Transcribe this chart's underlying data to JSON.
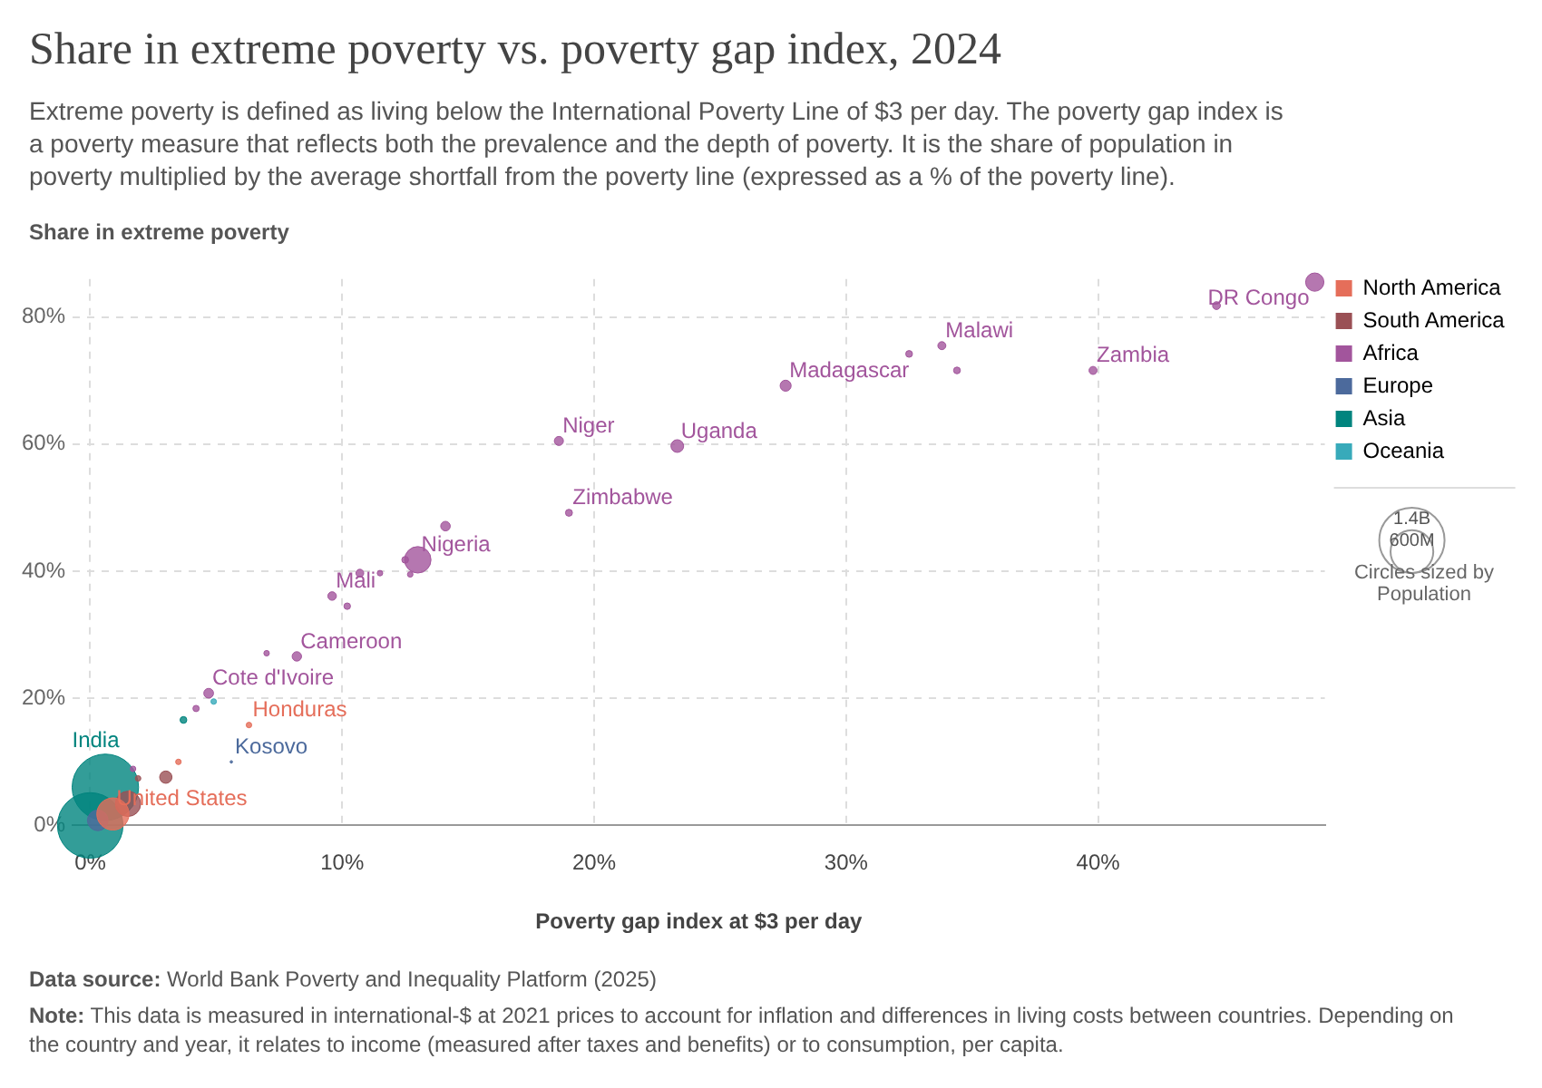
{
  "chart_data": {
    "type": "bubble",
    "title": "Share in extreme poverty vs. poverty gap index, 2024",
    "subtitle": "Extreme poverty is defined as living below the International Poverty Line of $3 per day. The poverty gap index is a poverty measure that reflects both the prevalence and the depth of poverty. It is the share of population in poverty multiplied by the average shortfall from the poverty line (expressed as a % of the poverty line).",
    "xlabel": "Poverty gap index at $3 per day",
    "ylabel": "Share in extreme poverty",
    "xlim": [
      -0.7,
      49
    ],
    "ylim": [
      0,
      86
    ],
    "xticks": [
      {
        "value": 0,
        "label": "0%"
      },
      {
        "value": 10,
        "label": "10%"
      },
      {
        "value": 20,
        "label": "20%"
      },
      {
        "value": 30,
        "label": "30%"
      },
      {
        "value": 40,
        "label": "40%"
      }
    ],
    "yticks": [
      {
        "value": 0,
        "label": "0%"
      },
      {
        "value": 20,
        "label": "20%"
      },
      {
        "value": 40,
        "label": "40%"
      },
      {
        "value": 60,
        "label": "60%"
      },
      {
        "value": 80,
        "label": "80%"
      }
    ],
    "grid": true,
    "legend": "top right",
    "line_style": "dashed",
    "size_legend": [
      {
        "value": 1400000000,
        "label": "1.4B"
      },
      {
        "value": 600000000,
        "label": "600M"
      }
    ],
    "series": [
      {
        "name": "North America",
        "color": "#e56e5a",
        "x": [
          0.9,
          6.3,
          3.5
        ],
        "values": [
          1.8,
          15.8,
          10.0
        ],
        "sizes": [
          340000000,
          10000000,
          10000000
        ]
      },
      {
        "name": "South America",
        "color": "#9a5055",
        "x": [
          3.0,
          1.9,
          1.5
        ],
        "values": [
          7.6,
          7.4,
          3.4
        ],
        "sizes": [
          50000000,
          10000000,
          210000000
        ]
      },
      {
        "name": "Africa",
        "color": "#a2559c",
        "x": [
          48.6,
          44.7,
          39.8,
          33.8,
          32.5,
          34.4,
          27.6,
          23.3,
          18.6,
          19.0,
          14.1,
          13.0,
          12.5,
          12.7,
          11.5,
          10.7,
          9.6,
          10.2,
          8.2,
          7.0,
          4.7,
          4.2,
          1.7
        ],
        "values": [
          85.5,
          81.8,
          71.6,
          75.5,
          74.2,
          71.6,
          69.2,
          59.7,
          60.5,
          49.2,
          47.1,
          41.8,
          41.8,
          39.5,
          39.7,
          39.7,
          36.1,
          34.5,
          26.6,
          27.1,
          20.8,
          18.4,
          8.9
        ],
        "sizes": [
          110000000,
          20000000,
          21000000,
          21000000,
          15000000,
          15000000,
          40000000,
          53000000,
          27000000,
          16000000,
          30000000,
          230000000,
          15000000,
          10000000,
          10000000,
          20000000,
          24000000,
          14000000,
          29000000,
          10000000,
          31000000,
          13000000,
          10000000
        ]
      },
      {
        "name": "Europe",
        "color": "#4c6a9c",
        "x": [
          5.6,
          0.3
        ],
        "values": [
          10.0,
          0.8
        ],
        "sizes": [
          2000000,
          140000000
        ]
      },
      {
        "name": "Asia",
        "color": "#00847e",
        "x": [
          0.6,
          0.0,
          3.7
        ],
        "values": [
          6.0,
          0.0,
          16.6
        ],
        "sizes": [
          1450000000,
          1410000000,
          15000000
        ]
      },
      {
        "name": "Oceania",
        "color": "#38aaba",
        "x": [
          4.9
        ],
        "values": [
          19.5
        ],
        "sizes": [
          10000000
        ]
      }
    ],
    "annotations": [
      {
        "text": "DR Congo",
        "x": 48.6,
        "y": 85.5
      },
      {
        "text": "Zambia",
        "x": 39.8,
        "y": 71.6
      },
      {
        "text": "Malawi",
        "x": 33.8,
        "y": 75.5
      },
      {
        "text": "Madagascar",
        "x": 27.6,
        "y": 69.2
      },
      {
        "text": "Uganda",
        "x": 23.3,
        "y": 59.7
      },
      {
        "text": "Niger",
        "x": 18.6,
        "y": 60.5
      },
      {
        "text": "Zimbabwe",
        "x": 19.0,
        "y": 49.2
      },
      {
        "text": "Nigeria",
        "x": 13.0,
        "y": 41.8
      },
      {
        "text": "Mali",
        "x": 9.6,
        "y": 36.1
      },
      {
        "text": "Cameroon",
        "x": 8.2,
        "y": 26.6
      },
      {
        "text": "Cote d'Ivoire",
        "x": 4.7,
        "y": 20.8
      },
      {
        "text": "Honduras",
        "x": 6.3,
        "y": 15.8
      },
      {
        "text": "Kosovo",
        "x": 5.6,
        "y": 10.0
      },
      {
        "text": "India",
        "x": 0.6,
        "y": 6.0
      },
      {
        "text": "United States",
        "x": 0.9,
        "y": 1.8
      },
      "Circles sized by Population",
      "Data source: World Bank Poverty and Inequality Platform (2025)",
      "Note: This data is measured in international-$ at 2021 prices to account for inflation and differences in living costs between countries. Depending on the country and year, it relates to income (measured after taxes and benefits) or to consumption, per capita."
    ]
  }
}
